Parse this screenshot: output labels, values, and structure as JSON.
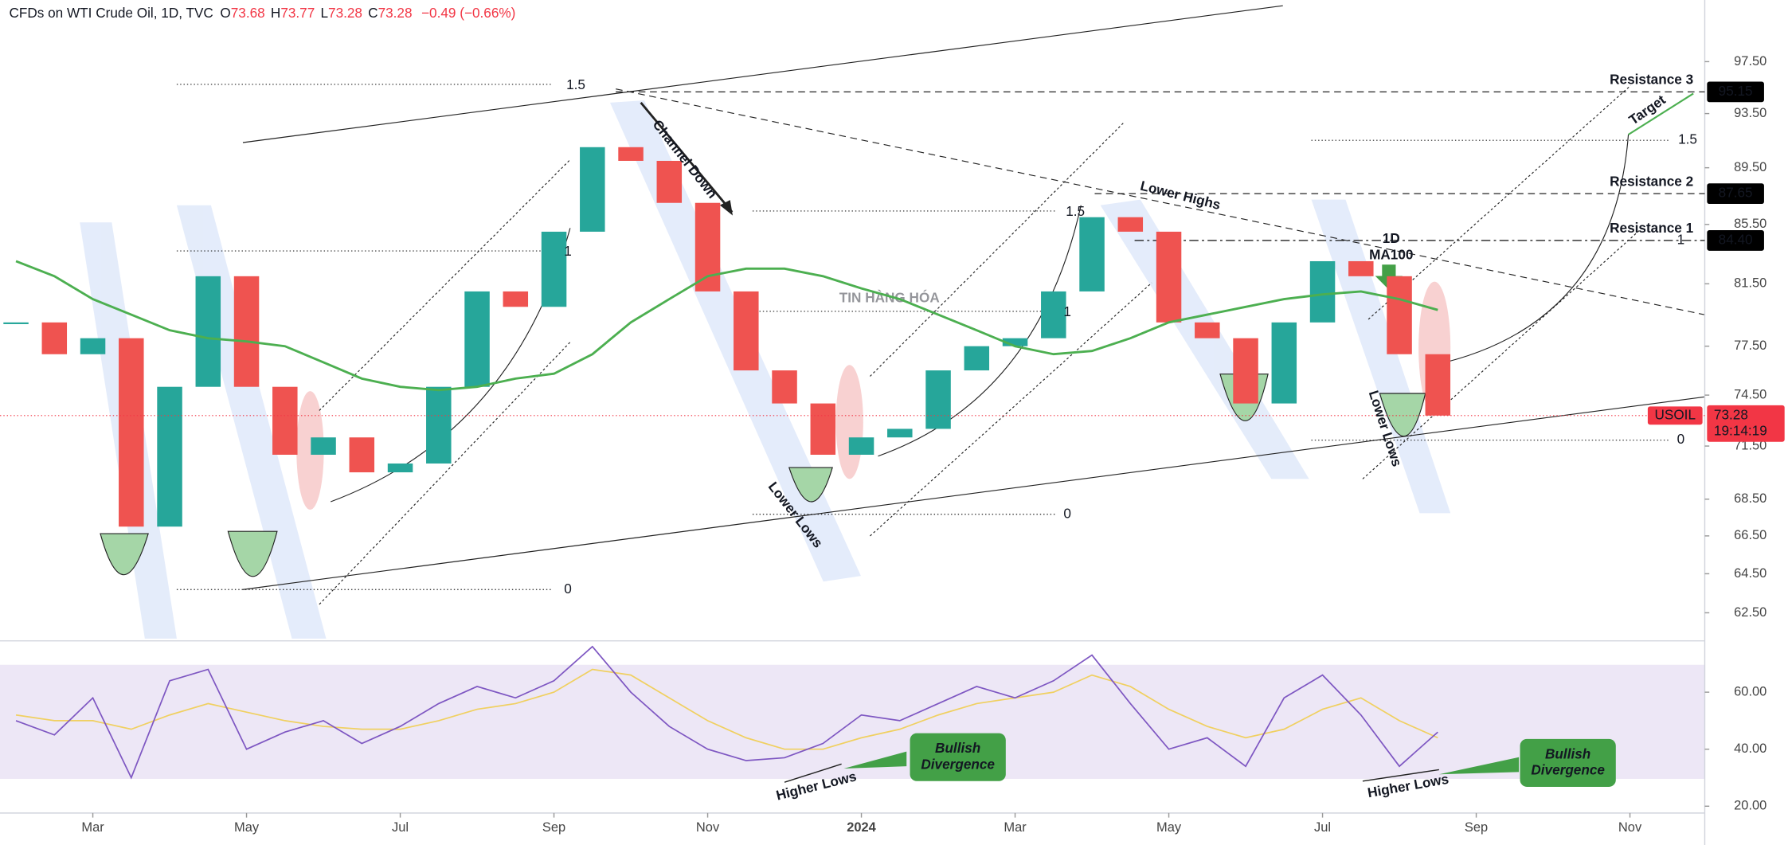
{
  "header": {
    "title": "CFDs on WTI Crude Oil, 1D, TVC",
    "ohlc": [
      {
        "label": "O",
        "value": 73.68
      },
      {
        "label": "H",
        "value": 73.77
      },
      {
        "label": "L",
        "value": 73.28
      },
      {
        "label": "C",
        "value": 73.28
      }
    ],
    "change": "−0.49 (−0.66%)"
  },
  "chart_data": {
    "type": "candlestick",
    "log_scale": true,
    "categories": [
      null,
      null,
      "Mar",
      null,
      null,
      null,
      "May",
      null,
      null,
      null,
      "Jul",
      null,
      null,
      null,
      "Sep",
      null,
      null,
      null,
      "Nov",
      null,
      null,
      null,
      "2024",
      null,
      null,
      null,
      "Mar",
      null,
      null,
      null,
      "May",
      null,
      null,
      null,
      "Jul",
      null,
      null,
      null,
      "Sep",
      null,
      null,
      null,
      "Nov",
      null,
      null
    ],
    "series": [
      {
        "name": "USOIL",
        "up_color": "#26a69a",
        "down_color": "#ef5350",
        "color": "#f23645",
        "values": [
          79,
          77,
          78,
          67,
          75,
          82,
          75,
          71,
          72,
          70,
          70.5,
          75,
          81,
          80,
          85,
          91,
          90,
          87,
          81,
          76,
          74,
          71,
          72,
          72.5,
          76,
          77.5,
          78,
          81,
          86,
          85,
          79,
          78,
          74,
          79,
          83,
          82,
          77,
          73.28,
          null,
          null,
          null,
          null,
          null,
          null,
          null
        ]
      },
      {
        "color": "#4caf50",
        "values": [
          83,
          82,
          80.5,
          79.5,
          78.5,
          78,
          77.8,
          77.5,
          76.5,
          75.5,
          75,
          74.8,
          75,
          75.5,
          75.8,
          77,
          79,
          80.5,
          82,
          82.5,
          82.5,
          82,
          81.2,
          80.5,
          79.5,
          78.5,
          77.5,
          77,
          77.2,
          78,
          79,
          79.5,
          80,
          80.5,
          80.8,
          81,
          80.5,
          79.8,
          null,
          null,
          null,
          null,
          null,
          null,
          null
        ]
      }
    ],
    "countdown": "19:14:19",
    "ylim": [
      61.1,
      102
    ],
    "yticks": [
      {
        "value": 97.5,
        "label": "97.50"
      },
      {
        "value": 93.5,
        "label": "93.50"
      },
      {
        "value": 89.5,
        "label": "89.50"
      },
      {
        "value": 85.5,
        "label": "85.50"
      },
      {
        "value": 81.5,
        "label": "81.50"
      },
      {
        "value": 77.5,
        "label": "77.50"
      },
      {
        "value": 74.5,
        "label": "74.50"
      },
      {
        "value": 71.5,
        "label": "71.50"
      },
      {
        "value": 68.5,
        "label": "68.50"
      },
      {
        "value": 66.5,
        "label": "66.50"
      },
      {
        "value": 64.5,
        "label": "64.50"
      },
      {
        "value": 62.5,
        "label": "62.50"
      }
    ],
    "levels": [
      {
        "name": "Resistance 3",
        "value": 95.15
      },
      {
        "name": "Resistance 2",
        "value": 87.65
      },
      {
        "name": "Resistance 1",
        "value": 84.4,
        "value_label": "84.40"
      }
    ],
    "annotations": [
      {
        "text": "Channel Down"
      },
      {
        "text": "Lower Highs"
      },
      {
        "text": "Lower Lows"
      },
      {
        "text": "Lower Lows"
      },
      {
        "text": "1D"
      },
      {
        "text": "MA100"
      },
      {
        "text": "Higher Lows"
      },
      {
        "text": "Higher Lows"
      },
      {
        "lines": [
          "Bullish",
          "Divergence"
        ]
      },
      {
        "lines": [
          "Bullish",
          "Divergence"
        ]
      },
      {
        "text": "1.5"
      },
      {
        "text": "1"
      },
      {
        "text": "0"
      },
      {
        "text": "1.5"
      },
      {
        "text": "1"
      },
      {
        "text": "0"
      },
      {
        "text": "1.5"
      },
      {
        "text": "1"
      },
      {
        "text": "0"
      },
      {
        "text": "Target"
      }
    ],
    "watermark": "TIN HÀNG HÓA",
    "rsi": {
      "type": "line",
      "series": [
        {
          "color": "#7e57c2",
          "values": [
            50,
            45,
            58,
            30,
            64,
            68,
            40,
            46,
            50,
            42,
            48,
            56,
            62,
            58,
            64,
            76,
            60,
            48,
            40,
            36,
            37,
            42,
            52,
            50,
            56,
            62,
            58,
            64,
            73,
            56,
            40,
            44,
            34,
            58,
            66,
            52,
            34,
            46,
            null,
            null,
            null,
            null,
            null,
            null,
            null
          ]
        },
        {
          "color": "#f0d060",
          "values": [
            52,
            50,
            50,
            47,
            52,
            56,
            53,
            50,
            48,
            47,
            47,
            50,
            54,
            56,
            60,
            68,
            66,
            58,
            50,
            44,
            40,
            40,
            44,
            47,
            52,
            56,
            58,
            60,
            66,
            62,
            54,
            48,
            44,
            47,
            54,
            58,
            50,
            44,
            null,
            null,
            null,
            null,
            null,
            null,
            null
          ]
        }
      ],
      "ylim": [
        17.6,
        76.8
      ],
      "yticks": [
        {
          "value": 60,
          "label": "60.00"
        },
        {
          "value": 40,
          "label": "40.00"
        },
        {
          "value": 20,
          "label": "20.00"
        }
      ]
    }
  }
}
